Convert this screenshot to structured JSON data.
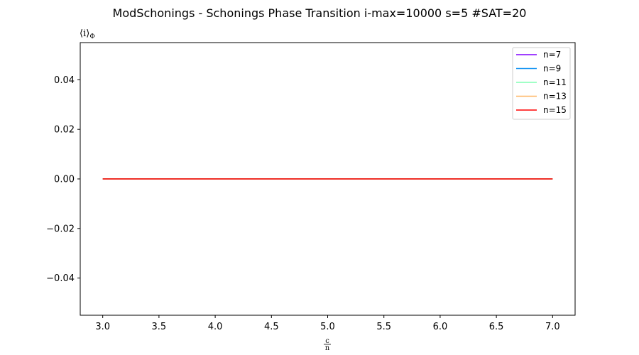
{
  "chart_data": {
    "type": "line",
    "title": "ModSchonings - Schonings Phase Transition  i-max=10000 s=5 #SAT=20",
    "ylabel": "⟨i⟩Φ",
    "xlabel": "c/n",
    "xlabel_numerator": "c",
    "xlabel_denominator": "n",
    "ylabel_main": "⟨i⟩",
    "ylabel_subscript": "Φ",
    "x": [
      3.0,
      3.5,
      4.0,
      4.5,
      5.0,
      5.5,
      6.0,
      6.5,
      7.0
    ],
    "xlim": [
      2.8,
      7.2
    ],
    "ylim": [
      -0.055,
      0.055
    ],
    "x_ticks": [
      3.0,
      3.5,
      4.0,
      4.5,
      5.0,
      5.5,
      6.0,
      6.5,
      7.0
    ],
    "x_tick_labels": [
      "3.0",
      "3.5",
      "4.0",
      "4.5",
      "5.0",
      "5.5",
      "6.0",
      "6.5",
      "7.0"
    ],
    "y_ticks": [
      0.04,
      0.02,
      0.0,
      -0.02,
      -0.04
    ],
    "y_tick_labels": [
      "0.04",
      "0.02",
      "0.00",
      "−0.02",
      "−0.04"
    ],
    "grid": false,
    "legend_position": "top-right",
    "series": [
      {
        "name": "n=7",
        "color": "#8000ff",
        "values": [
          0,
          0,
          0,
          0,
          0,
          0,
          0,
          0,
          0
        ]
      },
      {
        "name": "n=9",
        "color": "#1996f3",
        "values": [
          0,
          0,
          0,
          0,
          0,
          0,
          0,
          0,
          0
        ]
      },
      {
        "name": "n=11",
        "color": "#80ffb4",
        "values": [
          0,
          0,
          0,
          0,
          0,
          0,
          0,
          0,
          0
        ]
      },
      {
        "name": "n=13",
        "color": "#ffb360",
        "values": [
          0,
          0,
          0,
          0,
          0,
          0,
          0,
          0,
          0
        ]
      },
      {
        "name": "n=15",
        "color": "#ff0000",
        "values": [
          0,
          0,
          0,
          0,
          0,
          0,
          0,
          0,
          0
        ]
      }
    ]
  }
}
